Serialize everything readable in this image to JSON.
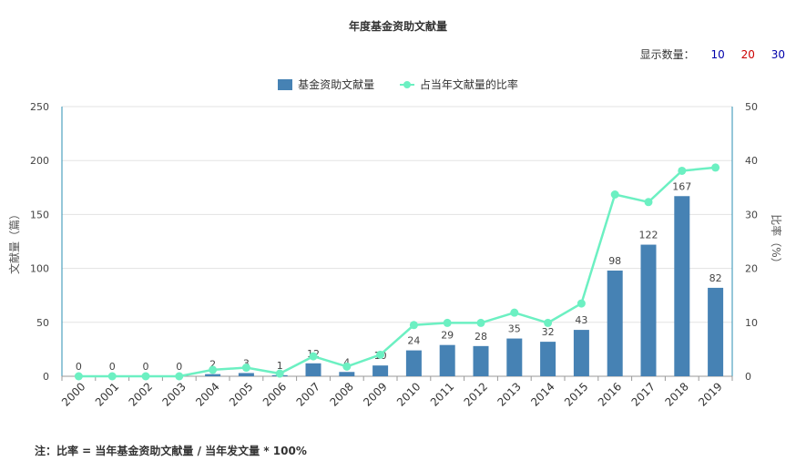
{
  "page": {
    "title": "年度基金资助文献量",
    "display_count": {
      "label": "显示数量：",
      "options": [
        "10",
        "20",
        "30"
      ]
    },
    "footnote": "注：比率 = 当年基金资助文献量 / 当年发文量 * 100%"
  },
  "chart_data": {
    "type": "bar",
    "title": "年度基金资助文献量",
    "categories": [
      "2000",
      "2001",
      "2002",
      "2003",
      "2004",
      "2005",
      "2006",
      "2007",
      "2008",
      "2009",
      "2010",
      "2011",
      "2012",
      "2013",
      "2014",
      "2015",
      "2016",
      "2017",
      "2018",
      "2019"
    ],
    "series": [
      {
        "name": "基金资助文献量",
        "type": "bar",
        "axis": "left",
        "color": "#4682b4",
        "values": [
          0,
          0,
          0,
          0,
          2,
          3,
          1,
          12,
          4,
          10,
          24,
          29,
          28,
          35,
          32,
          43,
          98,
          122,
          167,
          82
        ]
      },
      {
        "name": "占当年文献量的比率",
        "type": "line",
        "axis": "right",
        "color": "#6cf0c2",
        "values": [
          0,
          0,
          0,
          0,
          1.2,
          1.6,
          0.5,
          3.7,
          1.8,
          4.0,
          9.5,
          9.9,
          9.9,
          11.8,
          9.9,
          13.5,
          33.7,
          32.3,
          38.1,
          38.7
        ]
      }
    ],
    "ylabel_left": "文献量（篇）",
    "ylabel_right": "比率（%）",
    "ylim_left": [
      0,
      250
    ],
    "ylim_right": [
      0,
      50
    ],
    "yticks_left": [
      0,
      50,
      100,
      150,
      200,
      250
    ],
    "yticks_right": [
      0,
      10,
      20,
      30,
      40,
      50
    ],
    "grid": true,
    "legend": "top-center"
  }
}
